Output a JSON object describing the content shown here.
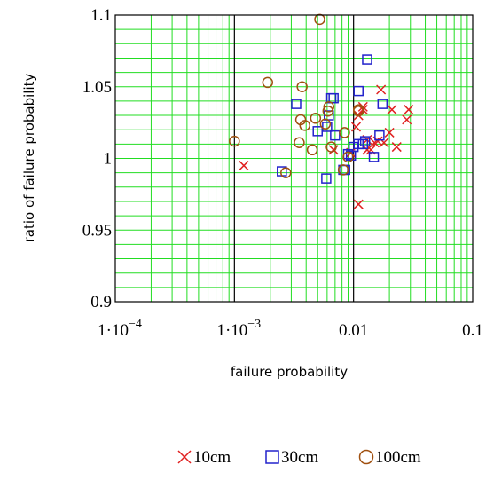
{
  "chart_data": {
    "type": "scatter",
    "xlabel": "failure probability",
    "ylabel": "ratio of failure probability",
    "xscale": "log",
    "xlim": [
      0.0001,
      0.1
    ],
    "ylim": [
      0.9,
      1.1
    ],
    "x_ticks": [
      {
        "value": 0.0001,
        "mantissa": "1",
        "dot": "·",
        "base": "10",
        "exp": "−4"
      },
      {
        "value": 0.001,
        "mantissa": "1",
        "dot": "·",
        "base": "10",
        "exp": "−3"
      },
      {
        "value": 0.01,
        "label": "0.01"
      },
      {
        "value": 0.1,
        "label": "0.1"
      }
    ],
    "y_ticks": [
      {
        "value": 0.9,
        "label": "0.9"
      },
      {
        "value": 0.95,
        "label": "0.95"
      },
      {
        "value": 1.0,
        "label": "1"
      },
      {
        "value": 1.05,
        "label": "1.05"
      },
      {
        "value": 1.1,
        "label": "1.1"
      }
    ],
    "grid": true,
    "grid_color": "#22dd22",
    "legend_position": "bottom",
    "series": [
      {
        "name": "10cm",
        "marker": "x",
        "color": "#e02020",
        "points": [
          [
            0.0012,
            0.995
          ],
          [
            0.0068,
            1.006
          ],
          [
            0.0095,
            1.004
          ],
          [
            0.0105,
            1.022
          ],
          [
            0.011,
            1.03
          ],
          [
            0.011,
            0.968
          ],
          [
            0.012,
            1.034
          ],
          [
            0.012,
            1.036
          ],
          [
            0.013,
            1.006
          ],
          [
            0.013,
            1.013
          ],
          [
            0.014,
            1.006
          ],
          [
            0.015,
            1.011
          ],
          [
            0.016,
            1.012
          ],
          [
            0.017,
            1.048
          ],
          [
            0.018,
            1.011
          ],
          [
            0.02,
            1.018
          ],
          [
            0.021,
            1.034
          ],
          [
            0.023,
            1.008
          ],
          [
            0.028,
            1.027
          ],
          [
            0.029,
            1.034
          ]
        ]
      },
      {
        "name": "30cm",
        "marker": "square",
        "color": "#2222cc",
        "points": [
          [
            0.0025,
            0.991
          ],
          [
            0.0033,
            1.038
          ],
          [
            0.005,
            1.019
          ],
          [
            0.0059,
            0.986
          ],
          [
            0.006,
            1.022
          ],
          [
            0.0062,
            1.03
          ],
          [
            0.0065,
            1.042
          ],
          [
            0.0068,
            1.042
          ],
          [
            0.007,
            1.016
          ],
          [
            0.0082,
            0.992
          ],
          [
            0.0085,
            0.992
          ],
          [
            0.009,
            1.003
          ],
          [
            0.0095,
            1.002
          ],
          [
            0.01,
            1.008
          ],
          [
            0.011,
            1.047
          ],
          [
            0.011,
            1.01
          ],
          [
            0.012,
            1.01
          ],
          [
            0.0125,
            1.012
          ],
          [
            0.013,
            1.069
          ],
          [
            0.0148,
            1.001
          ],
          [
            0.0165,
            1.016
          ],
          [
            0.0175,
            1.038
          ]
        ]
      },
      {
        "name": "100cm",
        "marker": "circle",
        "color": "#a05010",
        "points": [
          [
            0.001,
            1.012
          ],
          [
            0.0019,
            1.053
          ],
          [
            0.0027,
            0.99
          ],
          [
            0.0035,
            1.011
          ],
          [
            0.0036,
            1.027
          ],
          [
            0.0037,
            1.05
          ],
          [
            0.0039,
            1.023
          ],
          [
            0.0045,
            1.006
          ],
          [
            0.0048,
            1.028
          ],
          [
            0.0052,
            1.097
          ],
          [
            0.0058,
            1.024
          ],
          [
            0.0061,
            1.033
          ],
          [
            0.0062,
            1.036
          ],
          [
            0.0065,
            1.008
          ],
          [
            0.0082,
            0.992
          ],
          [
            0.0084,
            1.018
          ],
          [
            0.009,
            1.001
          ],
          [
            0.011,
            1.034
          ],
          [
            0.011,
            1.033
          ]
        ]
      }
    ]
  }
}
